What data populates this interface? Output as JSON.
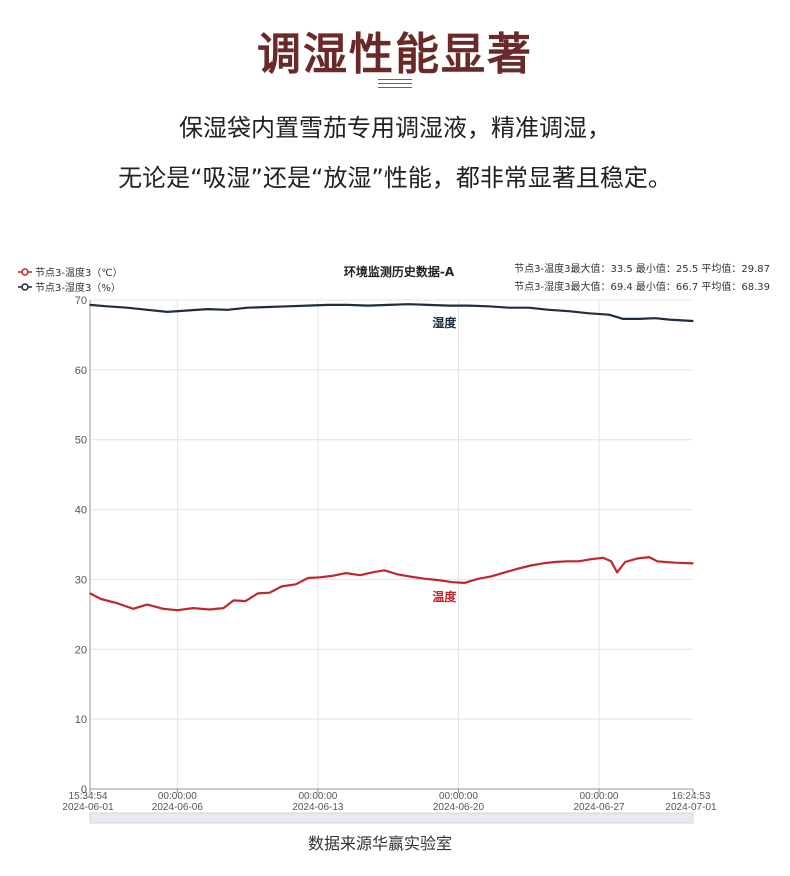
{
  "header": {
    "headline": "调湿性能显著",
    "subtitle_line1": "保湿袋内置雪茄专用调湿液，精准调湿，",
    "subtitle_line2": "无论是“吸湿”还是“放湿”性能，都非常显著且稳定。"
  },
  "chart_data": {
    "type": "line",
    "title": "环境监测历史数据-A",
    "ylim": [
      0,
      70
    ],
    "y_ticks": [
      "0",
      "10",
      "20",
      "30",
      "40",
      "50",
      "60",
      "70"
    ],
    "x_ticks": [
      {
        "time": "15:34:54",
        "date": "2024-06-01",
        "day": 0.65
      },
      {
        "time": "00:00:00",
        "date": "2024-06-06",
        "day": 5
      },
      {
        "time": "00:00:00",
        "date": "2024-06-13",
        "day": 12
      },
      {
        "time": "00:00:00",
        "date": "2024-06-20",
        "day": 19
      },
      {
        "time": "00:00:00",
        "date": "2024-06-27",
        "day": 26
      },
      {
        "time": "16:24:53",
        "date": "2024-07-01",
        "day": 30.68
      }
    ],
    "grid": true,
    "legend_position": "top-left",
    "series": [
      {
        "name": "节点3-温度3（℃）",
        "label": "温度",
        "color": "#c0272d",
        "stats": "节点3-温度3最大值：33.5 最小值：25.5 平均值：29.87",
        "points": [
          [
            0.65,
            28.0
          ],
          [
            1.2,
            27.2
          ],
          [
            2.0,
            26.6
          ],
          [
            2.8,
            25.8
          ],
          [
            3.5,
            26.4
          ],
          [
            4.3,
            25.8
          ],
          [
            5.0,
            25.6
          ],
          [
            5.8,
            25.9
          ],
          [
            6.6,
            25.7
          ],
          [
            7.3,
            25.9
          ],
          [
            7.8,
            27.0
          ],
          [
            8.4,
            26.9
          ],
          [
            9.0,
            28.0
          ],
          [
            9.6,
            28.1
          ],
          [
            10.2,
            29.0
          ],
          [
            10.9,
            29.3
          ],
          [
            11.5,
            30.2
          ],
          [
            12.1,
            30.3
          ],
          [
            12.7,
            30.5
          ],
          [
            13.4,
            30.9
          ],
          [
            14.1,
            30.6
          ],
          [
            14.7,
            31.0
          ],
          [
            15.3,
            31.3
          ],
          [
            16.0,
            30.7
          ],
          [
            16.6,
            30.4
          ],
          [
            17.3,
            30.1
          ],
          [
            18.0,
            29.9
          ],
          [
            18.7,
            29.6
          ],
          [
            19.3,
            29.5
          ],
          [
            20.0,
            30.1
          ],
          [
            20.6,
            30.4
          ],
          [
            21.3,
            31.0
          ],
          [
            21.9,
            31.5
          ],
          [
            22.6,
            32.0
          ],
          [
            23.2,
            32.3
          ],
          [
            23.8,
            32.5
          ],
          [
            24.4,
            32.6
          ],
          [
            25.0,
            32.6
          ],
          [
            25.6,
            32.9
          ],
          [
            26.2,
            33.1
          ],
          [
            26.6,
            32.6
          ],
          [
            26.9,
            31.0
          ],
          [
            27.3,
            32.5
          ],
          [
            27.9,
            33.0
          ],
          [
            28.5,
            33.2
          ],
          [
            28.9,
            32.6
          ],
          [
            29.3,
            32.5
          ],
          [
            29.8,
            32.4
          ],
          [
            30.68,
            32.3
          ]
        ]
      },
      {
        "name": "节点3-湿度3（%）",
        "label": "湿度",
        "color": "#1f2d3d",
        "stats": "节点3-湿度3最大值：69.4 最小值：66.7 平均值：68.39",
        "points": [
          [
            0.65,
            69.3
          ],
          [
            1.5,
            69.1
          ],
          [
            2.5,
            68.9
          ],
          [
            3.5,
            68.6
          ],
          [
            4.5,
            68.3
          ],
          [
            5.5,
            68.5
          ],
          [
            6.5,
            68.7
          ],
          [
            7.5,
            68.6
          ],
          [
            8.5,
            68.9
          ],
          [
            9.5,
            69.0
          ],
          [
            10.5,
            69.1
          ],
          [
            11.5,
            69.2
          ],
          [
            12.5,
            69.3
          ],
          [
            13.5,
            69.3
          ],
          [
            14.5,
            69.2
          ],
          [
            15.5,
            69.3
          ],
          [
            16.5,
            69.4
          ],
          [
            17.5,
            69.3
          ],
          [
            18.5,
            69.2
          ],
          [
            19.5,
            69.2
          ],
          [
            20.5,
            69.1
          ],
          [
            21.5,
            68.9
          ],
          [
            22.5,
            68.9
          ],
          [
            23.5,
            68.6
          ],
          [
            24.5,
            68.4
          ],
          [
            25.5,
            68.1
          ],
          [
            26.5,
            67.9
          ],
          [
            27.2,
            67.3
          ],
          [
            28.0,
            67.3
          ],
          [
            28.8,
            67.4
          ],
          [
            29.5,
            67.2
          ],
          [
            30.68,
            67.0
          ]
        ]
      }
    ]
  },
  "footer": {
    "source": "数据来源华赢实验室"
  }
}
